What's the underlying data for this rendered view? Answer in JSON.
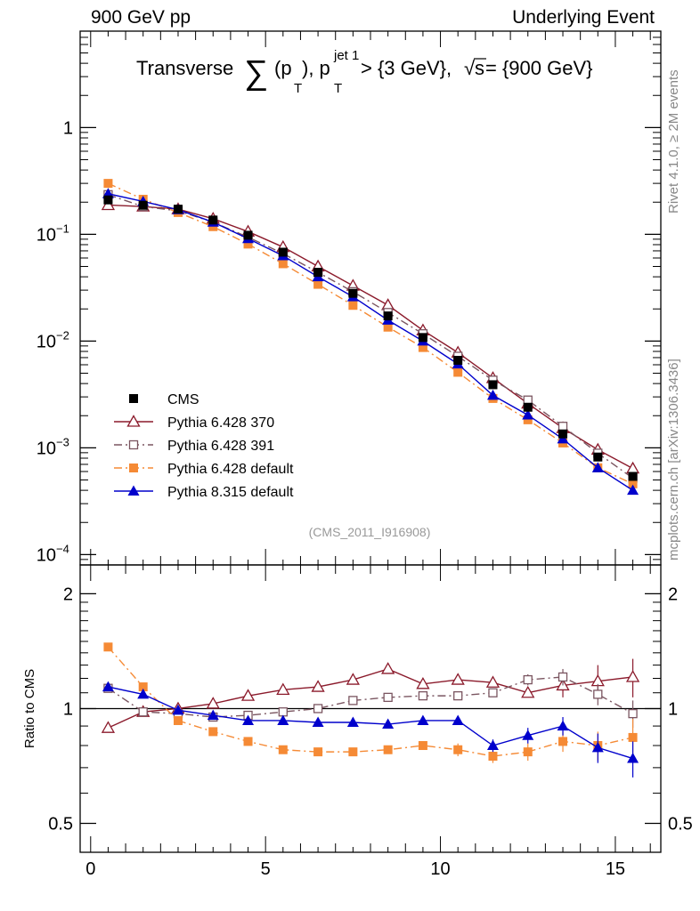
{
  "header": {
    "left": "900 GeV pp",
    "right": "Underlying Event"
  },
  "side_labels": {
    "rivet": "Rivet 4.1.0, ≥ 2M events",
    "source": "mcplots.cern.ch [arXiv:1306.3436]"
  },
  "chart_data": [
    {
      "type": "line",
      "panel": "main",
      "title_text": "Transverse ∑(p_T), p_T^{jet 1} > {3 GeV}, √s = {900 GeV}",
      "title_parts": {
        "prefix": "Transverse",
        "sum": "∑",
        "pt": "(p",
        "pt_sub": "T",
        "pt_close": "), p",
        "jet_sup": "jet 1",
        "jet_sub": "T",
        "rest": " > {3 GeV}, ",
        "sqrt": "√",
        "s": "s",
        "energy": " = {900 GeV}"
      },
      "watermark": "(CMS_2011_I916908)",
      "yscale": "log",
      "ylim": [
        8e-05,
        8
      ],
      "xlim": [
        -0.3,
        16.3
      ],
      "ytick_values": [
        0.0001,
        0.001,
        0.01,
        0.1,
        1
      ],
      "ytick_base": "10",
      "ytick_exps": [
        "−4",
        "−3",
        "−2",
        "−1",
        ""
      ],
      "ytick_plain": [
        "",
        "",
        "",
        "",
        "1"
      ],
      "x": [
        0.5,
        1.5,
        2.5,
        3.5,
        4.5,
        5.5,
        6.5,
        7.5,
        8.5,
        9.5,
        10.5,
        11.5,
        12.5,
        13.5,
        14.5,
        15.5
      ],
      "legend_position": "lower-left",
      "series": [
        {
          "name": "CMS",
          "color": "#000000",
          "marker": "square-filled",
          "line": "none",
          "values": [
            0.21,
            0.187,
            0.172,
            0.136,
            0.098,
            0.068,
            0.044,
            0.028,
            0.0172,
            0.0108,
            0.0066,
            0.0039,
            0.0024,
            0.00135,
            0.00082,
            0.00054
          ]
        },
        {
          "name": "Pythia 6.428 370",
          "color": "#8b1a2b",
          "marker": "triangle-open",
          "line": "solid",
          "values": [
            0.188,
            0.182,
            0.172,
            0.14,
            0.106,
            0.076,
            0.05,
            0.033,
            0.0217,
            0.0126,
            0.0078,
            0.0045,
            0.0026,
            0.00153,
            0.00096,
            0.00064
          ]
        },
        {
          "name": "Pythia 6.428 391",
          "color": "#7a5560",
          "marker": "square-open",
          "line": "dashdot",
          "values": [
            0.235,
            0.182,
            0.166,
            0.13,
            0.094,
            0.066,
            0.044,
            0.029,
            0.0185,
            0.0117,
            0.0072,
            0.0043,
            0.0028,
            0.00159,
            0.00089,
            0.00052
          ]
        },
        {
          "name": "Pythia 6.428 default",
          "color": "#f58a35",
          "marker": "square-filled",
          "line": "dashdot",
          "values": [
            0.3,
            0.213,
            0.16,
            0.118,
            0.081,
            0.053,
            0.034,
            0.0216,
            0.0135,
            0.0087,
            0.0051,
            0.0029,
            0.00183,
            0.00111,
            0.00065,
            0.00046
          ]
        },
        {
          "name": "Pythia 8.315 default",
          "color": "#0000cc",
          "marker": "triangle-filled",
          "line": "solid",
          "values": [
            0.24,
            0.203,
            0.17,
            0.13,
            0.091,
            0.063,
            0.04,
            0.026,
            0.0157,
            0.01,
            0.0061,
            0.0031,
            0.00203,
            0.00121,
            0.00065,
            0.0004
          ]
        }
      ]
    },
    {
      "type": "line",
      "panel": "ratio",
      "ylabel": "Ratio to CMS",
      "yscale": "log",
      "ylim": [
        0.42,
        2.38
      ],
      "xlim": [
        -0.3,
        16.3
      ],
      "ytick_values": [
        0.5,
        1,
        2
      ],
      "ytick_labels": [
        "0.5",
        "1",
        "2"
      ],
      "xtick_values": [
        0,
        5,
        10,
        15
      ],
      "xtick_labels": [
        "0",
        "5",
        "10",
        "15"
      ],
      "reference_line": 1,
      "x": [
        0.5,
        1.5,
        2.5,
        3.5,
        4.5,
        5.5,
        6.5,
        7.5,
        8.5,
        9.5,
        10.5,
        11.5,
        12.5,
        13.5,
        14.5,
        15.5
      ],
      "series": [
        {
          "name": "Pythia 6.428 370",
          "color": "#8b1a2b",
          "marker": "triangle-open",
          "line": "solid",
          "values": [
            0.89,
            0.98,
            1.0,
            1.03,
            1.08,
            1.12,
            1.14,
            1.19,
            1.27,
            1.16,
            1.19,
            1.17,
            1.1,
            1.15,
            1.18,
            1.21
          ],
          "errors": [
            0,
            0,
            0,
            0,
            0,
            0,
            0,
            0,
            0,
            0,
            0,
            0.02,
            0.03,
            0.08,
            0.12,
            0.14
          ]
        },
        {
          "name": "Pythia 6.428 391",
          "color": "#7a5560",
          "marker": "square-open",
          "line": "dashdot",
          "values": [
            1.13,
            0.98,
            0.97,
            0.95,
            0.96,
            0.98,
            1.0,
            1.05,
            1.07,
            1.08,
            1.08,
            1.1,
            1.19,
            1.21,
            1.09,
            0.97
          ],
          "errors": [
            0,
            0,
            0,
            0,
            0,
            0,
            0,
            0,
            0,
            0,
            0,
            0.02,
            0.04,
            0.06,
            0.07,
            0.08
          ]
        },
        {
          "name": "Pythia 6.428 default",
          "color": "#f58a35",
          "marker": "square-filled",
          "line": "dashdot",
          "values": [
            1.45,
            1.14,
            0.93,
            0.87,
            0.82,
            0.78,
            0.77,
            0.77,
            0.78,
            0.8,
            0.78,
            0.75,
            0.77,
            0.82,
            0.8,
            0.84
          ],
          "errors": [
            0,
            0,
            0,
            0,
            0,
            0,
            0,
            0,
            0,
            0.02,
            0.03,
            0.03,
            0.04,
            0.05,
            0.07,
            0.1
          ]
        },
        {
          "name": "Pythia 8.315 default",
          "color": "#0000cc",
          "marker": "triangle-filled",
          "line": "solid",
          "values": [
            1.14,
            1.09,
            0.99,
            0.96,
            0.93,
            0.93,
            0.92,
            0.92,
            0.91,
            0.93,
            0.93,
            0.8,
            0.85,
            0.9,
            0.79,
            0.74
          ],
          "errors": [
            0,
            0,
            0,
            0,
            0,
            0,
            0,
            0,
            0,
            0,
            0.02,
            0.03,
            0.04,
            0.05,
            0.07,
            0.08
          ]
        }
      ]
    }
  ]
}
